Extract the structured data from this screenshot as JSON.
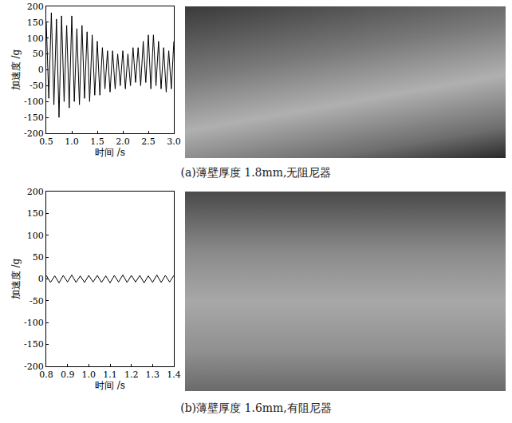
{
  "chart_data": [
    {
      "type": "line",
      "title": "(a)薄壁厚度 1.8mm,无阻尼器",
      "x_label": "时间 /s",
      "y_label": "加速度 /g",
      "color": "#000000",
      "grid": false,
      "x": [
        0.5,
        0.55,
        0.6,
        0.65,
        0.7,
        0.75,
        0.8,
        0.85,
        0.9,
        0.95,
        1.0,
        1.05,
        1.1,
        1.15,
        1.2,
        1.25,
        1.3,
        1.35,
        1.4,
        1.45,
        1.5,
        1.55,
        1.6,
        1.65,
        1.7,
        1.75,
        1.8,
        1.85,
        1.9,
        1.95,
        2.0,
        2.05,
        2.1,
        2.15,
        2.2,
        2.25,
        2.3,
        2.35,
        2.4,
        2.45,
        2.5,
        2.55,
        2.6,
        2.65,
        2.7,
        2.75,
        2.8,
        2.85,
        2.9,
        2.95,
        3.0
      ],
      "values": [
        150,
        -90,
        180,
        -110,
        160,
        -150,
        170,
        -100,
        140,
        -120,
        170,
        -100,
        130,
        -110,
        140,
        -90,
        120,
        -100,
        110,
        -80,
        90,
        -80,
        70,
        -60,
        60,
        -70,
        60,
        -60,
        50,
        -50,
        60,
        -60,
        50,
        -50,
        70,
        -40,
        70,
        -50,
        90,
        -40,
        110,
        -60,
        110,
        -50,
        90,
        -60,
        70,
        -70,
        60,
        -60,
        90
      ],
      "xlim": [
        0.5,
        3.0
      ],
      "xticks": [
        0.5,
        {
          "value": 1,
          "label": "1.0"
        },
        1.5,
        {
          "value": 2,
          "label": "2.0"
        },
        2.5,
        {
          "value": 3,
          "label": "3.0"
        }
      ],
      "ylim": [
        -200,
        200
      ],
      "yticks": [
        -200,
        -150,
        -100,
        -50,
        0,
        50,
        100,
        150,
        200
      ]
    },
    {
      "type": "line",
      "title": "(b)薄壁厚度 1.6mm,有阻尼器",
      "x_label": "时间 /s",
      "y_label": "加速度 /g",
      "color": "#000000",
      "grid": false,
      "x": [
        0.8,
        0.82,
        0.84,
        0.86,
        0.88,
        0.9,
        0.92,
        0.94,
        0.96,
        0.98,
        1.0,
        1.02,
        1.04,
        1.06,
        1.08,
        1.1,
        1.12,
        1.14,
        1.16,
        1.18,
        1.2,
        1.22,
        1.24,
        1.26,
        1.28,
        1.3,
        1.32,
        1.34,
        1.36,
        1.38,
        1.4
      ],
      "values": [
        8,
        -8,
        7,
        -9,
        8,
        -7,
        9,
        -8,
        7,
        -8,
        8,
        -7,
        8,
        -8,
        7,
        -9,
        8,
        -7,
        9,
        -8,
        8,
        -7,
        8,
        -9,
        7,
        -8,
        9,
        -8,
        8,
        -7,
        8
      ],
      "xlim": [
        0.8,
        1.4
      ],
      "xticks": [
        0.8,
        0.9,
        {
          "value": 1,
          "label": "1.0"
        },
        1.1,
        1.2,
        1.3,
        1.4
      ],
      "ylim": [
        -200,
        200
      ],
      "yticks": [
        -200,
        -150,
        -100,
        -50,
        0,
        50,
        100,
        150,
        200
      ]
    }
  ]
}
